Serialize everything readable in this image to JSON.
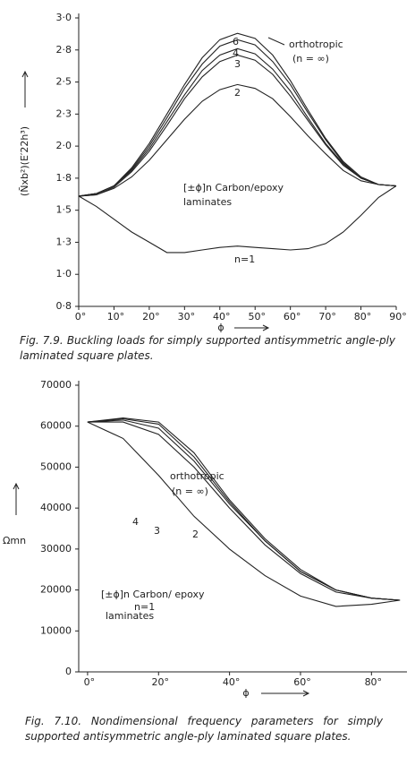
{
  "chart_data": [
    {
      "type": "line",
      "y_label": "(N̄xb²)(E′22h³)",
      "x_label": "ϕ",
      "caption": "Fig. 7.9. Buckling loads for simply supported antisymmetric angle-ply laminated square plates.",
      "annotations": [
        "(n = ∞)",
        "[±ϕ]n Carbon/epoxy",
        "laminates"
      ],
      "x": [
        0,
        5,
        10,
        15,
        20,
        25,
        30,
        35,
        40,
        45,
        50,
        55,
        60,
        65,
        70,
        75,
        80,
        85,
        90
      ],
      "series": [
        {
          "name": "n=1",
          "color": "#222222",
          "values": [
            1.61,
            1.53,
            1.43,
            1.33,
            1.25,
            1.17,
            1.17,
            1.19,
            1.21,
            1.22,
            1.21,
            1.2,
            1.19,
            1.2,
            1.24,
            1.33,
            1.46,
            1.6,
            1.69
          ]
        },
        {
          "name": "2",
          "color": "#222222",
          "values": [
            1.61,
            1.62,
            1.67,
            1.76,
            1.89,
            2.05,
            2.21,
            2.35,
            2.44,
            2.48,
            2.45,
            2.37,
            2.23,
            2.08,
            1.94,
            1.81,
            1.73,
            1.7,
            1.69
          ]
        },
        {
          "name": "3",
          "color": "#222222",
          "values": [
            1.61,
            1.62,
            1.68,
            1.8,
            1.96,
            2.16,
            2.37,
            2.54,
            2.66,
            2.71,
            2.67,
            2.56,
            2.39,
            2.2,
            2.01,
            1.85,
            1.75,
            1.7,
            1.69
          ]
        },
        {
          "name": "4",
          "color": "#222222",
          "values": [
            1.61,
            1.63,
            1.69,
            1.81,
            1.98,
            2.19,
            2.4,
            2.59,
            2.71,
            2.76,
            2.72,
            2.6,
            2.43,
            2.22,
            2.02,
            1.86,
            1.75,
            1.7,
            1.69
          ]
        },
        {
          "name": "6",
          "color": "#222222",
          "values": [
            1.61,
            1.63,
            1.69,
            1.82,
            2.0,
            2.22,
            2.45,
            2.64,
            2.78,
            2.83,
            2.79,
            2.66,
            2.48,
            2.26,
            2.05,
            1.87,
            1.75,
            1.7,
            1.69
          ]
        },
        {
          "name": "orthotropic",
          "color": "#222222",
          "values": [
            1.61,
            1.63,
            1.69,
            1.83,
            2.02,
            2.25,
            2.48,
            2.69,
            2.83,
            2.88,
            2.84,
            2.71,
            2.51,
            2.28,
            2.06,
            1.88,
            1.76,
            1.7,
            1.69
          ]
        }
      ],
      "xlim": [
        0,
        90
      ],
      "xticks": [
        {
          "value": 0,
          "label": "0°"
        },
        {
          "value": 10,
          "label": "10°"
        },
        {
          "value": 20,
          "label": "20°"
        },
        {
          "value": 30,
          "label": "30°"
        },
        {
          "value": 40,
          "label": "40°"
        },
        {
          "value": 50,
          "label": "50°"
        },
        {
          "value": 60,
          "label": "60°"
        },
        {
          "value": 70,
          "label": "70°"
        },
        {
          "value": 80,
          "label": "80°"
        },
        {
          "value": 90,
          "label": "90°"
        }
      ],
      "ylim": [
        0.75,
        3.0
      ],
      "yticks": [
        {
          "value": 3.0,
          "label": "3·0"
        },
        {
          "value": 2.75,
          "label": "2·8"
        },
        {
          "value": 2.5,
          "label": "2·5"
        },
        {
          "value": 2.25,
          "label": "2·3"
        },
        {
          "value": 2.0,
          "label": "2·0"
        },
        {
          "value": 1.75,
          "label": "1·8"
        },
        {
          "value": 1.5,
          "label": "1·5"
        },
        {
          "value": 1.25,
          "label": "1·3"
        },
        {
          "value": 1.0,
          "label": "1·0"
        },
        {
          "value": 0.75,
          "label": "0·8"
        }
      ],
      "grid": false
    },
    {
      "type": "line",
      "y_label": "Ωmn",
      "x_label": "ϕ",
      "caption": "Fig. 7.10. Nondimensional frequency parameters for simply supported antisymmetric angle-ply laminated square plates.",
      "annotations": [
        "(n = ∞)",
        "[±ϕ]n Carbon/ epoxy",
        "laminates"
      ],
      "x": [
        0,
        10,
        20,
        30,
        40,
        50,
        60,
        70,
        80,
        88
      ],
      "series": [
        {
          "name": "n=1",
          "color": "#222222",
          "values": [
            61000,
            57000,
            48000,
            38000,
            30000,
            23500,
            18500,
            16000,
            16500,
            17500
          ]
        },
        {
          "name": "2",
          "color": "#222222",
          "values": [
            61000,
            61000,
            58000,
            50000,
            40000,
            31000,
            24000,
            19500,
            18000,
            17500
          ]
        },
        {
          "name": "3",
          "color": "#222222",
          "values": [
            61000,
            61500,
            59500,
            51500,
            41000,
            32000,
            24500,
            20000,
            18000,
            17500
          ]
        },
        {
          "name": "4",
          "color": "#222222",
          "values": [
            61000,
            61800,
            60500,
            52500,
            41500,
            32000,
            24500,
            20000,
            18000,
            17500
          ]
        },
        {
          "name": "orthotropic",
          "color": "#222222",
          "values": [
            61000,
            62000,
            61000,
            53500,
            42000,
            32500,
            25000,
            20000,
            18000,
            17500
          ]
        }
      ],
      "xlim": [
        -2.5,
        90
      ],
      "xticks": [
        {
          "value": 0,
          "label": "0°"
        },
        {
          "value": 20,
          "label": "20°"
        },
        {
          "value": 40,
          "label": "40°"
        },
        {
          "value": 60,
          "label": "60°"
        },
        {
          "value": 80,
          "label": "80°"
        }
      ],
      "ylim": [
        0,
        70000
      ],
      "yticks": [
        0,
        10000,
        20000,
        30000,
        40000,
        50000,
        60000,
        70000
      ],
      "grid": false
    }
  ]
}
